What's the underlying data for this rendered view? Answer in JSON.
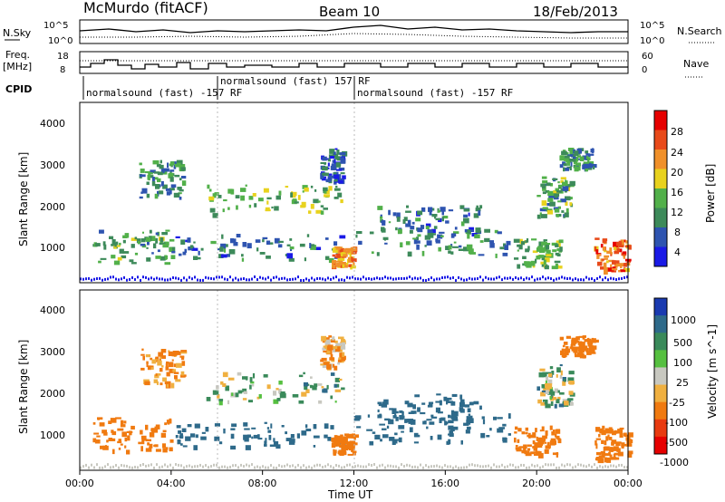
{
  "header": {
    "station": "McMurdo (fitACF)",
    "beam": "Beam 10",
    "date": "18/Feb/2013"
  },
  "sky_panel": {
    "left_label": "N.Sky",
    "right_label": "N.Search",
    "left_ticks": [
      "10^5",
      "10^0"
    ],
    "right_ticks": [
      "10^5",
      "10^0"
    ]
  },
  "freq_panel": {
    "left_label_1": "Freq.",
    "left_label_2": "[MHz]",
    "left_ticks": [
      "18",
      "8"
    ],
    "right_label": "Nave",
    "right_ticks": [
      "60",
      "0"
    ]
  },
  "cpid": {
    "label": "CPID",
    "entries": [
      {
        "text": "normalsound (fast) -157 RF",
        "start_hour": 0.1
      },
      {
        "text": "normalsound (fast) 157 RF",
        "start_hour": 6.0
      },
      {
        "text": "normalsound (fast) -157 RF",
        "start_hour": 12.0
      }
    ]
  },
  "x_axis": {
    "label": "Time UT",
    "ticks": [
      "00:00",
      "04:00",
      "08:00",
      "12:00",
      "16:00",
      "20:00",
      "00:00"
    ],
    "range_hours": [
      0,
      24
    ]
  },
  "power_panel": {
    "ylabel": "Slant Range [km]",
    "yticks": [
      "4000",
      "3000",
      "2000",
      "1000"
    ],
    "colorbar_label": "Power [dB]",
    "colorbar_ticks": [
      "28",
      "24",
      "20",
      "16",
      "12",
      "8",
      "4"
    ],
    "colors": [
      "#1a1ae6",
      "#2e54b0",
      "#3d8a5a",
      "#52b04a",
      "#e8d21e",
      "#f0902a",
      "#e84a1a",
      "#e60000"
    ]
  },
  "velocity_panel": {
    "ylabel": "Slant Range [km]",
    "yticks": [
      "4000",
      "3000",
      "2000",
      "1000"
    ],
    "colorbar_label": "Velocity [m s^-1]",
    "colorbar_ticks": [
      "1000",
      "500",
      "100",
      "25",
      "-25",
      "-100",
      "-500",
      "-1000"
    ],
    "colors": [
      "#1a3ab0",
      "#2e6a8a",
      "#3a8a5a",
      "#56c040",
      "#c8c8c0",
      "#f0b040",
      "#f07a10",
      "#e83a10",
      "#e60000"
    ]
  },
  "chart_data": {
    "type": "heatmap",
    "title": "McMurdo (fitACF)  Beam 10  18/Feb/2013",
    "xlabel": "Time UT",
    "ylabel": "Slant Range [km]",
    "xlim": [
      0,
      24
    ],
    "ylim": [
      200,
      4600
    ],
    "echo_regions": [
      {
        "t0": 2.6,
        "t1": 4.5,
        "r0": 2300,
        "r1": 3200,
        "power_db": 10,
        "velocity": -150
      },
      {
        "t0": 5.5,
        "t1": 11.5,
        "r0": 1900,
        "r1": 2600,
        "power_db": 14,
        "velocity": 20
      },
      {
        "t0": 10.5,
        "t1": 11.5,
        "r0": 2700,
        "r1": 3500,
        "power_db": 6,
        "velocity": -100
      },
      {
        "t0": 13.0,
        "t1": 17.5,
        "r0": 1400,
        "r1": 2100,
        "power_db": 8,
        "velocity": 250
      },
      {
        "t0": 20.0,
        "t1": 21.5,
        "r0": 1800,
        "r1": 2800,
        "power_db": 12,
        "velocity": 20
      },
      {
        "t0": 21.0,
        "t1": 22.5,
        "r0": 3000,
        "r1": 3500,
        "power_db": 10,
        "velocity": -400
      },
      {
        "t0": 0.5,
        "t1": 4.0,
        "r0": 700,
        "r1": 1500,
        "power_db": 12,
        "velocity": -300
      },
      {
        "t0": 4.0,
        "t1": 11.5,
        "r0": 800,
        "r1": 1400,
        "power_db": 8,
        "velocity": 300
      },
      {
        "t0": 11.0,
        "t1": 12.0,
        "r0": 600,
        "r1": 1100,
        "power_db": 22,
        "velocity": -300
      },
      {
        "t0": 12.0,
        "t1": 19.0,
        "r0": 900,
        "r1": 1600,
        "power_db": 9,
        "velocity": 250
      },
      {
        "t0": 19.0,
        "t1": 21.0,
        "r0": 600,
        "r1": 1300,
        "power_db": 14,
        "velocity": -350
      },
      {
        "t0": 22.5,
        "t1": 24.0,
        "r0": 500,
        "r1": 1300,
        "power_db": 24,
        "velocity": -400
      }
    ]
  }
}
